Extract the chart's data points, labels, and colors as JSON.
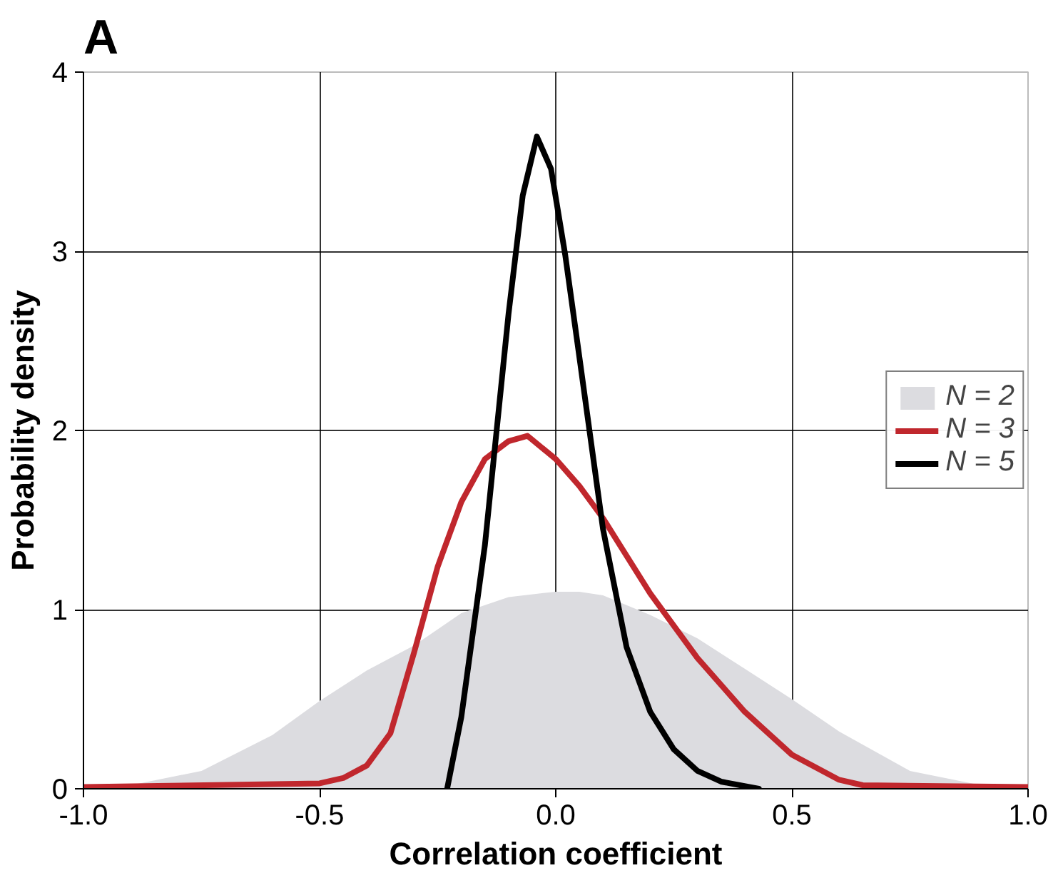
{
  "chart_data": {
    "type": "line",
    "title": "A",
    "xlabel": "Correlation coefficient",
    "ylabel": "Probability density",
    "xlim": [
      -1.0,
      1.0
    ],
    "ylim": [
      0,
      4
    ],
    "xticks": [
      {
        "value": -1.0,
        "label": "-1.0"
      },
      {
        "value": -0.5,
        "label": "-0.5"
      },
      {
        "value": 0.0,
        "label": "0.0"
      },
      {
        "value": 0.5,
        "label": "0.5"
      },
      {
        "value": 1.0,
        "label": "1.0"
      }
    ],
    "yticks": [
      0,
      1,
      2,
      3,
      4
    ],
    "grid": true,
    "legend": "right",
    "series": [
      {
        "name": "N = 2",
        "type": "area",
        "color": "#dcdce0",
        "x": [
          -1.0,
          -0.9,
          -0.75,
          -0.6,
          -0.5,
          -0.4,
          -0.3,
          -0.2,
          -0.1,
          0.0,
          0.05,
          0.1,
          0.2,
          0.3,
          0.4,
          0.5,
          0.6,
          0.75,
          0.9,
          1.0
        ],
        "values": [
          0.0,
          0.02,
          0.1,
          0.3,
          0.49,
          0.66,
          0.8,
          0.98,
          1.07,
          1.1,
          1.1,
          1.08,
          0.97,
          0.84,
          0.67,
          0.5,
          0.32,
          0.1,
          0.02,
          0.0
        ]
      },
      {
        "name": "N = 3",
        "color": "#c0272d",
        "x": [
          -1.0,
          -0.5,
          -0.45,
          -0.4,
          -0.35,
          -0.3,
          -0.25,
          -0.2,
          -0.15,
          -0.1,
          -0.06,
          0.0,
          0.05,
          0.1,
          0.2,
          0.3,
          0.4,
          0.5,
          0.6,
          0.65,
          1.0
        ],
        "values": [
          0.01,
          0.03,
          0.06,
          0.13,
          0.31,
          0.76,
          1.24,
          1.6,
          1.84,
          1.94,
          1.97,
          1.84,
          1.69,
          1.51,
          1.09,
          0.73,
          0.43,
          0.19,
          0.05,
          0.02,
          0.01
        ]
      },
      {
        "name": "N = 5",
        "color": "#000000",
        "x": [
          -0.23,
          -0.2,
          -0.15,
          -0.1,
          -0.07,
          -0.04,
          -0.01,
          0.02,
          0.05,
          0.1,
          0.15,
          0.2,
          0.25,
          0.3,
          0.35,
          0.43
        ],
        "values": [
          0.0,
          0.4,
          1.36,
          2.65,
          3.31,
          3.64,
          3.46,
          2.98,
          2.41,
          1.45,
          0.79,
          0.43,
          0.22,
          0.1,
          0.04,
          0.0
        ]
      }
    ]
  }
}
